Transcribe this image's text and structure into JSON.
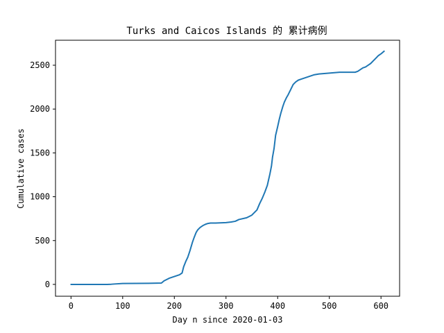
{
  "chart_data": {
    "type": "line",
    "title": "Turks and Caicos Islands 的 累计病例",
    "xlabel": "Day n since 2020-01-03",
    "ylabel": "Cumulative cases",
    "xlim": [
      -30,
      636
    ],
    "ylim": [
      -135,
      2785
    ],
    "xticks": [
      0,
      100,
      200,
      300,
      400,
      500,
      600
    ],
    "yticks": [
      0,
      500,
      1000,
      1500,
      2000,
      2500
    ],
    "grid": false,
    "colors": {
      "line": "#1f77b4",
      "axes": "#000000",
      "background": "#ffffff"
    },
    "series": [
      {
        "x": [
          0,
          70,
          78,
          85,
          100,
          150,
          175,
          180,
          185,
          190,
          195,
          200,
          205,
          210,
          215,
          218,
          222,
          226,
          230,
          235,
          238,
          242,
          245,
          250,
          255,
          260,
          265,
          270,
          280,
          300,
          310,
          318,
          325,
          340,
          350,
          360,
          365,
          370,
          375,
          380,
          385,
          388,
          390,
          393,
          396,
          400,
          403,
          406,
          410,
          413,
          417,
          420,
          425,
          430,
          435,
          440,
          445,
          450,
          460,
          470,
          480,
          500,
          520,
          550,
          555,
          560,
          565,
          570,
          575,
          580,
          585,
          590,
          595,
          600,
          606
        ],
        "y": [
          0,
          0,
          2,
          5,
          10,
          12,
          15,
          40,
          55,
          70,
          80,
          90,
          100,
          110,
          130,
          200,
          260,
          310,
          380,
          480,
          530,
          590,
          620,
          650,
          670,
          685,
          695,
          700,
          700,
          705,
          712,
          720,
          740,
          760,
          790,
          850,
          920,
          980,
          1050,
          1130,
          1260,
          1350,
          1450,
          1550,
          1700,
          1800,
          1880,
          1950,
          2030,
          2080,
          2130,
          2160,
          2220,
          2280,
          2310,
          2330,
          2340,
          2350,
          2370,
          2390,
          2400,
          2410,
          2420,
          2420,
          2430,
          2450,
          2470,
          2480,
          2500,
          2520,
          2550,
          2580,
          2610,
          2630,
          2660
        ]
      }
    ]
  }
}
